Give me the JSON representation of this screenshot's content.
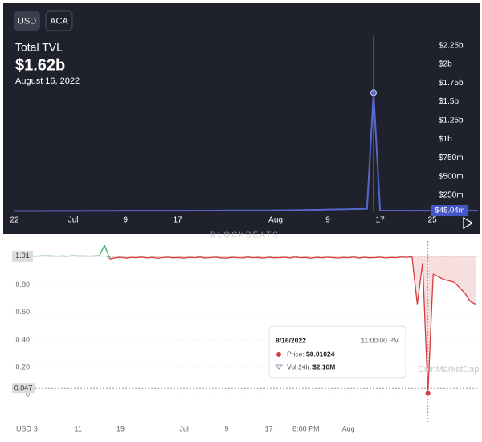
{
  "buttons": [
    "USD",
    "ACA"
  ],
  "chart_data": [
    {
      "type": "line",
      "title": "Total TVL",
      "value_text": "$1.62b",
      "date_text": "August 16, 2022",
      "color": "#5567c9",
      "categories": [
        "22",
        null,
        null,
        null,
        null,
        null,
        null,
        null,
        null,
        "Jul",
        null,
        null,
        null,
        null,
        null,
        null,
        null,
        "9",
        null,
        null,
        null,
        null,
        null,
        null,
        null,
        "17",
        null,
        null,
        null,
        null,
        null,
        null,
        null,
        null,
        null,
        null,
        null,
        null,
        null,
        null,
        "Aug",
        null,
        null,
        null,
        null,
        null,
        null,
        null,
        "9",
        null,
        null,
        null,
        null,
        null,
        null,
        null,
        "17",
        null,
        null,
        null,
        null,
        null,
        null,
        null,
        "25",
        null,
        null,
        null,
        null,
        null,
        null,
        null
      ],
      "values": [
        40,
        40,
        41,
        41,
        41,
        42,
        42,
        42,
        42,
        42,
        42,
        43,
        43,
        43,
        43,
        43,
        44,
        44,
        44,
        44,
        44,
        44,
        45,
        45,
        45,
        45,
        45,
        46,
        46,
        46,
        46,
        46,
        47,
        47,
        47,
        48,
        48,
        48,
        49,
        49,
        50,
        50,
        51,
        52,
        53,
        55,
        56,
        58,
        60,
        62,
        63,
        65,
        67,
        68,
        70,
        1620,
        45.5,
        45.3,
        45.2,
        45.1,
        45.1,
        45.0,
        45.1,
        45.0,
        45.1,
        45.0,
        45.1,
        45.0,
        45.0,
        45.1,
        45.0,
        45.04
      ],
      "ylim": [
        35,
        2430
      ],
      "yticks": [
        {
          "value": 250,
          "label": "$250m"
        },
        {
          "value": 500,
          "label": "$500m"
        },
        {
          "value": 750,
          "label": "$750m"
        },
        {
          "value": 1000,
          "label": "$1b"
        },
        {
          "value": 1250,
          "label": "$1.25b"
        },
        {
          "value": 1500,
          "label": "$1.5b"
        },
        {
          "value": 1750,
          "label": "$1.75b"
        },
        {
          "value": 2000,
          "label": "$2b"
        },
        {
          "value": 2250,
          "label": "$2.25b"
        }
      ],
      "current": {
        "value": 45.04,
        "label": "$45.04m"
      },
      "watermark": "BLOCKBEATS"
    },
    {
      "type": "line",
      "x_axis_label": "USD",
      "color_up": "#3aa55d",
      "color_down": "#d63b3b",
      "fill": "#f3c9c9",
      "categories": [
        null,
        null,
        null,
        null,
        "3",
        null,
        null,
        null,
        null,
        null,
        null,
        null,
        "11",
        null,
        null,
        null,
        null,
        null,
        null,
        null,
        "19",
        null,
        null,
        null,
        null,
        null,
        null,
        null,
        null,
        null,
        null,
        null,
        "Jul",
        null,
        null,
        null,
        null,
        null,
        null,
        null,
        "9",
        null,
        null,
        null,
        null,
        null,
        null,
        null,
        "17",
        null,
        null,
        null,
        null,
        null,
        null,
        "8:00 PM",
        null,
        null,
        null,
        null,
        null,
        null,
        null,
        "Aug",
        null,
        null,
        null,
        null,
        null,
        null,
        null,
        null,
        null,
        null,
        null,
        null,
        null,
        null,
        null,
        null,
        null,
        null,
        null,
        null,
        null,
        null,
        null,
        null
      ],
      "values": [
        1.012,
        1.011,
        1.013,
        1.012,
        1.011,
        1.012,
        1.013,
        1.012,
        1.011,
        1.012,
        1.011,
        1.013,
        1.012,
        1.012,
        1.011,
        1.012,
        1.013,
        1.09,
        0.99,
        0.998,
        1.003,
        0.996,
        1.001,
        0.999,
        1.004,
        0.997,
        1.002,
        0.995,
        1.0,
        1.003,
        0.998,
        1.001,
        0.996,
        1.002,
        0.999,
        1.004,
        0.997,
        1.0,
        1.003,
        0.998,
        0.996,
        1.002,
        1.0,
        0.997,
        1.004,
        0.999,
        1.001,
        0.996,
        1.003,
        0.998,
        1.0,
        1.002,
        0.997,
        1.004,
        0.999,
        1.001,
        0.995,
        1.002,
        0.998,
        1.003,
        1.0,
        0.997,
        1.001,
        0.999,
        1.004,
        0.996,
        1.002,
        0.998,
        1.0,
        1.003,
        0.997,
        1.001,
        0.999,
        1.004,
        1.002,
        1.006,
        0.66,
        0.96,
        0.01024,
        0.88,
        0.86,
        0.84,
        0.83,
        0.82,
        0.78,
        0.74,
        0.68,
        0.66
      ],
      "ylim": [
        -0.11,
        1.12
      ],
      "yticks": [
        0,
        {
          "value": 0.2,
          "label": "0.20"
        },
        {
          "value": 0.4,
          "label": "0.40"
        },
        {
          "value": 0.6,
          "label": "0.60"
        },
        {
          "value": 0.8,
          "label": "0.80"
        }
      ],
      "reference": 1.01,
      "crosshair": 0.047,
      "tooltip": {
        "date": "8/16/2022",
        "time": "11:00:00 PM",
        "price_label": "Price:",
        "price": "$0.01024",
        "volume_label": "Vol 24h:",
        "volume": "$2.10M"
      },
      "watermark": "CoinMarketCap"
    }
  ]
}
